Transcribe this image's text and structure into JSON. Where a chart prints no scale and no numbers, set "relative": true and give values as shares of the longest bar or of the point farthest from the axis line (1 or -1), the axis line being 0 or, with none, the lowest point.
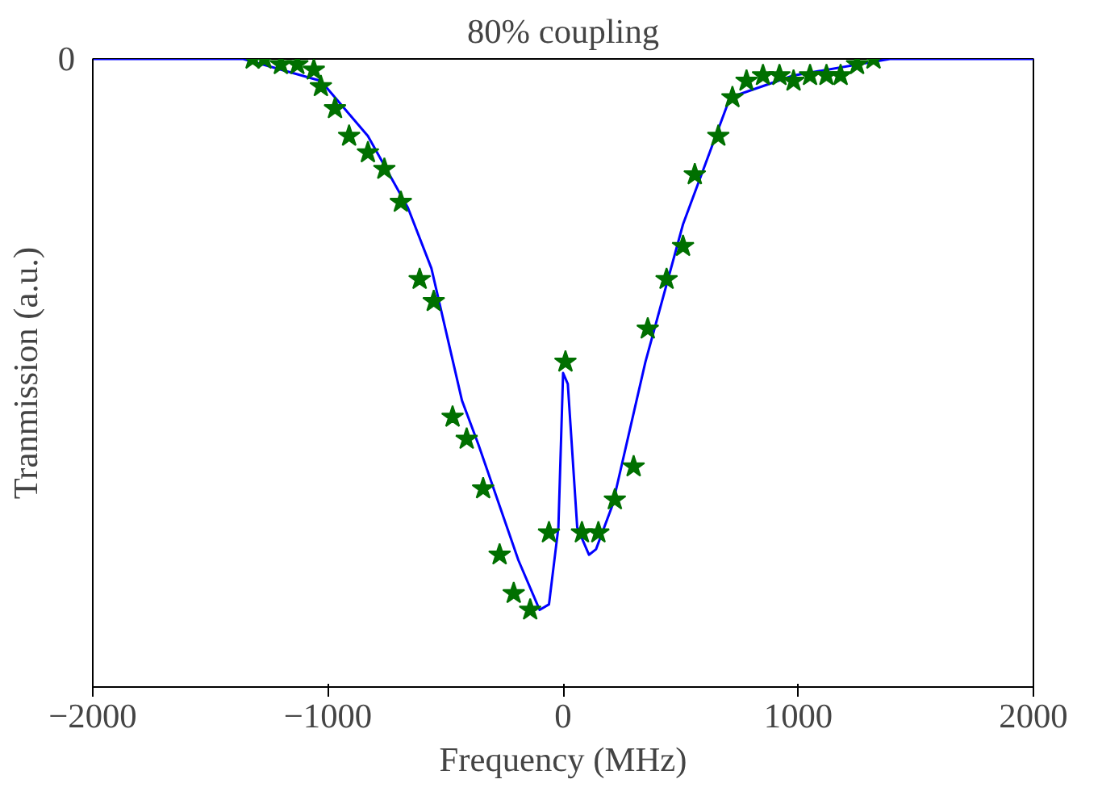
{
  "chart_data": {
    "type": "scatter",
    "title": "80% coupling",
    "xlabel": "Frequency (MHz)",
    "ylabel": "Tranmission (a.u.)",
    "relative": true,
    "xlim": [
      -2000,
      2000
    ],
    "xticks": [
      -2000,
      -1000,
      0,
      1000,
      2000
    ],
    "grid": false,
    "annotations": [
      "0"
    ],
    "series": [
      {
        "type": "line",
        "color": "#0000ff",
        "marker": "none",
        "line_style": "solid",
        "x": [
          -2000,
          -1360,
          -1030,
          -830,
          -660,
          -560,
          -430,
          -360,
          -190,
          -100,
          -60,
          -20,
          0,
          20,
          60,
          110,
          140,
          210,
          350,
          510,
          710,
          980,
          1390,
          2000
        ],
        "values": [
          0,
          0,
          -0.04,
          -0.14,
          -0.27,
          -0.38,
          -0.62,
          -0.7,
          -0.91,
          -1.0,
          -0.99,
          -0.85,
          -0.57,
          -0.59,
          -0.85,
          -0.9,
          -0.89,
          -0.81,
          -0.55,
          -0.3,
          -0.07,
          -0.03,
          0,
          0
        ]
      },
      {
        "color": "#007000",
        "marker": "star",
        "x": [
          -1320,
          -1270,
          -1200,
          -1130,
          -1060,
          -1030,
          -970,
          -910,
          -830,
          -760,
          -690,
          -610,
          -550,
          -470,
          -410,
          -340,
          -270,
          -210,
          -140,
          -60,
          10,
          80,
          150,
          220,
          300,
          360,
          440,
          510,
          560,
          660,
          720,
          780,
          850,
          920,
          980,
          1050,
          1120,
          1180,
          1250,
          1320
        ],
        "values": [
          0,
          0,
          -0.01,
          -0.01,
          -0.02,
          -0.05,
          -0.09,
          -0.14,
          -0.17,
          -0.2,
          -0.26,
          -0.4,
          -0.44,
          -0.65,
          -0.69,
          -0.78,
          -0.9,
          -0.97,
          -1.0,
          -0.86,
          -0.55,
          -0.86,
          -0.86,
          -0.8,
          -0.74,
          -0.49,
          -0.4,
          -0.34,
          -0.21,
          -0.14,
          -0.07,
          -0.04,
          -0.03,
          -0.03,
          -0.04,
          -0.03,
          -0.03,
          -0.03,
          -0.01,
          0
        ]
      }
    ]
  }
}
